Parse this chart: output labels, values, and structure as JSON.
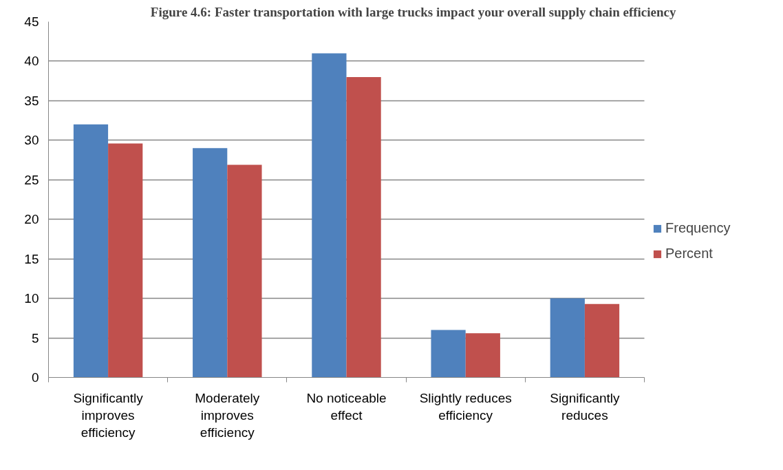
{
  "chart_data": {
    "type": "bar",
    "title": "Figure 4.6: Faster transportation with large trucks impact your overall supply chain efficiency",
    "categories": [
      "Significantly improves efficiency",
      "Moderately improves efficiency",
      "No noticeable effect",
      "Slightly reduces efficiency",
      "Significantly reduces"
    ],
    "series": [
      {
        "name": "Frequency",
        "color": "#4f81bd",
        "values": [
          32,
          29,
          41,
          6,
          10
        ]
      },
      {
        "name": "Percent",
        "color": "#c0504d",
        "values": [
          29.6,
          26.9,
          38.0,
          5.6,
          9.3
        ]
      }
    ],
    "ylim": [
      0,
      45
    ],
    "yticks": [
      0,
      5,
      10,
      15,
      20,
      25,
      30,
      35,
      40,
      45
    ],
    "grid": "y",
    "legend": "right"
  }
}
